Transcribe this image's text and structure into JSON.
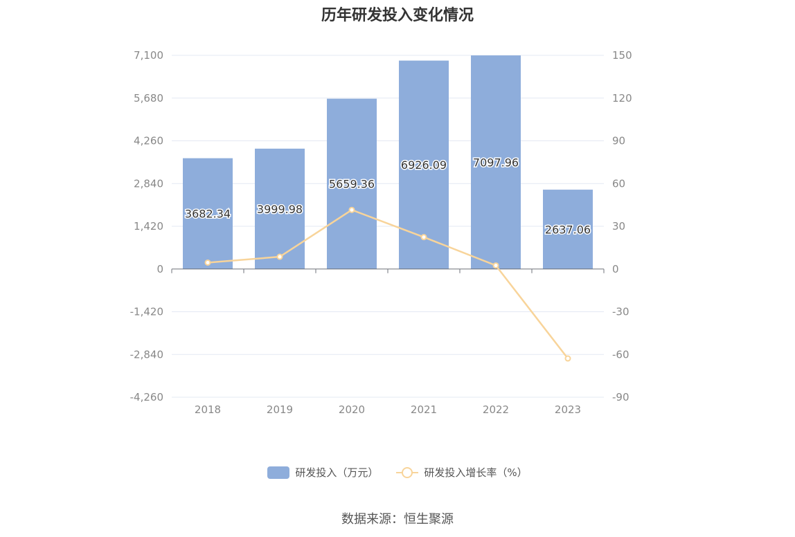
{
  "chart_data": {
    "type": "bar",
    "title": "历年研发投入变化情况",
    "categories": [
      "2018",
      "2019",
      "2020",
      "2021",
      "2022",
      "2023"
    ],
    "series": [
      {
        "name": "研发投入（万元）",
        "type": "bar",
        "axis": "left",
        "values": [
          3682.34,
          3999.98,
          5659.36,
          6926.09,
          7097.96,
          2637.06
        ],
        "labels": [
          "3682.34",
          "3999.98",
          "5659.36",
          "6926.09",
          "7097.96",
          "2637.06"
        ]
      },
      {
        "name": "研发投入增长率（%）",
        "type": "line",
        "axis": "right",
        "values": [
          4.5,
          8.6,
          41.5,
          22.4,
          2.5,
          -62.8
        ]
      }
    ],
    "y_left": {
      "ylim": [
        -4260,
        7100
      ],
      "ticks": [
        7100,
        5680,
        4260,
        2840,
        1420,
        0,
        -1420,
        -2840,
        -4260
      ],
      "tick_labels": [
        "7,100",
        "5,680",
        "4,260",
        "2,840",
        "1,420",
        "0",
        "-1,420",
        "-2,840",
        "-4,260"
      ]
    },
    "y_right": {
      "ylim": [
        -90,
        150
      ],
      "ticks": [
        150,
        120,
        90,
        60,
        30,
        0,
        -30,
        -60,
        -90
      ],
      "tick_labels": [
        "150",
        "120",
        "90",
        "60",
        "30",
        "0",
        "-30",
        "-60",
        "-90"
      ]
    },
    "grid": true,
    "legend_position": "bottom",
    "colors": {
      "bar": "#8eaddb",
      "line": "#f8d49a",
      "grid": "#e3e8f3",
      "axis": "#6e7079",
      "tick_text": "#888888"
    }
  },
  "legend": {
    "bar_label": "研发投入（万元）",
    "line_label": "研发投入增长率（%）"
  },
  "source": "数据来源：恒生聚源"
}
